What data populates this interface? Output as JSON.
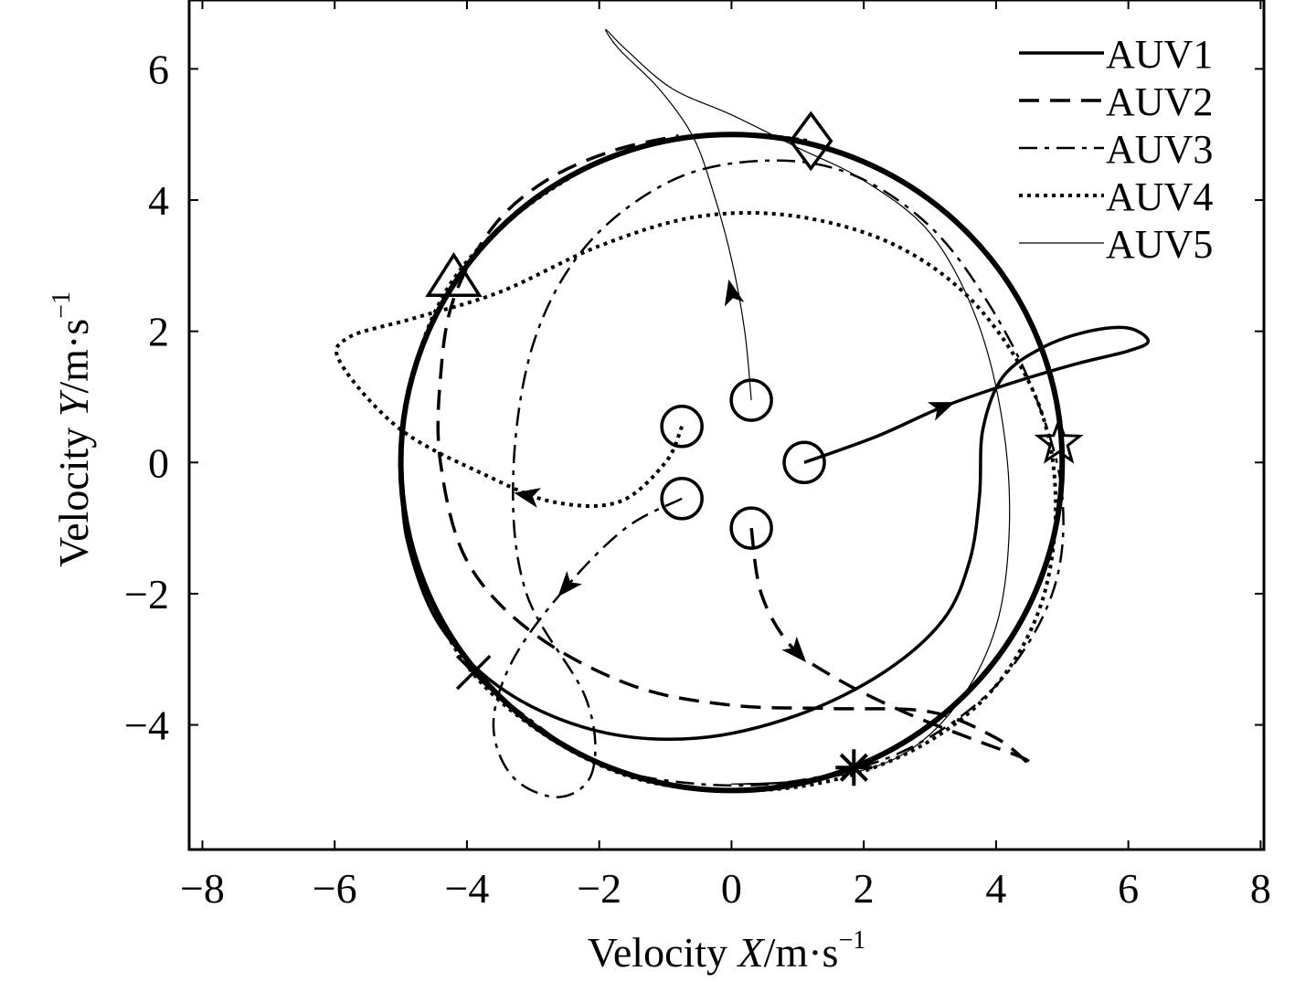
{
  "chart_data": {
    "type": "line",
    "title": "",
    "xlabel": {
      "prefix": "Velocity ",
      "var": "X",
      "unit": "/m·s",
      "exp": "−1"
    },
    "ylabel": {
      "prefix": "Velocity ",
      "var": "Y",
      "unit": "/m·s",
      "exp": "−1"
    },
    "xlim": [
      -8.2,
      8.05
    ],
    "ylim": [
      -5.9,
      7.05
    ],
    "xticks": [
      {
        "v": -8,
        "label": "−8"
      },
      {
        "v": -6,
        "label": "−6"
      },
      {
        "v": -4,
        "label": "−4"
      },
      {
        "v": -2,
        "label": "−2"
      },
      {
        "v": 0,
        "label": "0"
      },
      {
        "v": 2,
        "label": "2"
      },
      {
        "v": 4,
        "label": "4"
      },
      {
        "v": 6,
        "label": "6"
      },
      {
        "v": 8,
        "label": "8"
      }
    ],
    "yticks": [
      {
        "v": -4,
        "label": "−4"
      },
      {
        "v": -2,
        "label": "−2"
      },
      {
        "v": 0,
        "label": "0"
      },
      {
        "v": 2,
        "label": "2"
      },
      {
        "v": 4,
        "label": "4"
      },
      {
        "v": 6,
        "label": "6"
      }
    ],
    "grid": false,
    "legend_position": "top-right",
    "reference_circle": {
      "center": [
        0,
        0
      ],
      "radius": 5
    },
    "series": [
      {
        "name": "AUV1",
        "style": "solid",
        "width": 3.5,
        "start_marker": "circle",
        "end_marker": "star",
        "points": [
          [
            1.1,
            0
          ],
          [
            2.2,
            0.4
          ],
          [
            3.2,
            0.85
          ],
          [
            4.2,
            1.2
          ],
          [
            5.2,
            1.5
          ],
          [
            6.0,
            1.7
          ],
          [
            6.3,
            1.85
          ],
          [
            6.0,
            2.05
          ],
          [
            5.4,
            2.0
          ],
          [
            4.7,
            1.75
          ],
          [
            4.1,
            1.3
          ],
          [
            3.8,
            0.5
          ],
          [
            3.75,
            -0.5
          ],
          [
            3.6,
            -1.5
          ],
          [
            3.2,
            -2.4
          ],
          [
            2.3,
            -3.2
          ],
          [
            1.0,
            -3.85
          ],
          [
            -0.5,
            -4.2
          ],
          [
            -2.0,
            -4.1
          ],
          [
            -3.4,
            -3.5
          ],
          [
            -4.4,
            -2.5
          ],
          [
            -4.9,
            -1.2
          ],
          [
            -5.0,
            0
          ]
        ],
        "arrows": [
          [
            3.2,
            0.85
          ]
        ]
      },
      {
        "name": "AUV2",
        "style": "dash",
        "width": 3.5,
        "start_marker": "circle",
        "end_marker": "triangle",
        "points": [
          [
            0.3,
            -1.0
          ],
          [
            0.45,
            -2.0
          ],
          [
            0.9,
            -2.8
          ],
          [
            1.6,
            -3.3
          ],
          [
            2.6,
            -3.8
          ],
          [
            3.6,
            -4.2
          ],
          [
            4.4,
            -4.5
          ],
          [
            4.5,
            -4.6
          ],
          [
            4.0,
            -4.2
          ],
          [
            3.0,
            -3.8
          ],
          [
            1.5,
            -3.75
          ],
          [
            0.0,
            -3.7
          ],
          [
            -1.5,
            -3.4
          ],
          [
            -3.0,
            -2.6
          ],
          [
            -4.0,
            -1.5
          ],
          [
            -4.4,
            0
          ],
          [
            -4.4,
            1.3
          ],
          [
            -4.2,
            2.5
          ],
          [
            -3.6,
            3.6
          ],
          [
            -2.8,
            4.3
          ],
          [
            -1.8,
            4.75
          ],
          [
            -0.8,
            4.98
          ]
        ],
        "arrows": [
          [
            1.0,
            -2.9
          ]
        ]
      },
      {
        "name": "AUV3",
        "style": "dashdot",
        "width": 2.5,
        "start_marker": "circle",
        "end_marker": "cross",
        "points": [
          [
            -0.75,
            -0.55
          ],
          [
            -1.6,
            -1.0
          ],
          [
            -2.5,
            -1.9
          ],
          [
            -3.3,
            -3.0
          ],
          [
            -3.6,
            -4.0
          ],
          [
            -3.3,
            -4.8
          ],
          [
            -2.6,
            -5.1
          ],
          [
            -2.1,
            -4.7
          ],
          [
            -2.2,
            -3.6
          ],
          [
            -3.1,
            -2.0
          ],
          [
            -3.3,
            -0.2
          ],
          [
            -3.0,
            1.8
          ],
          [
            -2.2,
            3.3
          ],
          [
            -0.9,
            4.3
          ],
          [
            0.5,
            4.6
          ],
          [
            1.8,
            4.4
          ],
          [
            3.0,
            3.6
          ],
          [
            3.9,
            2.4
          ],
          [
            4.6,
            1.0
          ],
          [
            5.0,
            -0.5
          ],
          [
            4.85,
            -2.0
          ],
          [
            4.0,
            -3.4
          ],
          [
            2.6,
            -4.4
          ],
          [
            1.0,
            -4.85
          ],
          [
            -0.5,
            -4.9
          ],
          [
            -2.0,
            -4.6
          ],
          [
            -3.2,
            -3.8
          ],
          [
            -3.9,
            -3.2
          ]
        ],
        "arrows": [
          [
            -2.5,
            -1.9
          ]
        ]
      },
      {
        "name": "AUV4",
        "style": "dot",
        "width": 4,
        "start_marker": "circle",
        "end_marker": "diamond",
        "points": [
          [
            -0.75,
            0.55
          ],
          [
            -1.0,
            0.0
          ],
          [
            -1.7,
            -0.6
          ],
          [
            -2.7,
            -0.6
          ],
          [
            -3.7,
            -0.2
          ],
          [
            -5.0,
            0.5
          ],
          [
            -5.9,
            1.5
          ],
          [
            -5.8,
            1.9
          ],
          [
            -4.8,
            2.2
          ],
          [
            -3.5,
            2.6
          ],
          [
            -2.0,
            3.3
          ],
          [
            -0.5,
            3.75
          ],
          [
            1.0,
            3.75
          ],
          [
            2.5,
            3.3
          ],
          [
            3.7,
            2.4
          ],
          [
            4.6,
            1.0
          ],
          [
            4.9,
            -0.5
          ],
          [
            4.7,
            -2.1
          ],
          [
            4.0,
            -3.4
          ],
          [
            2.9,
            -4.3
          ],
          [
            1.5,
            -4.85
          ],
          [
            0.0,
            -5.0
          ],
          [
            -1.5,
            -4.8
          ],
          [
            -2.9,
            -4.1
          ],
          [
            -4.0,
            -3.1
          ],
          [
            -4.7,
            -1.7
          ],
          [
            -5.0,
            -0.2
          ],
          [
            -4.8,
            1.4
          ],
          [
            -4.2,
            2.8
          ],
          [
            -3.1,
            3.9
          ],
          [
            -1.6,
            4.75
          ],
          [
            0.0,
            5.0
          ],
          [
            1.2,
            4.9
          ]
        ],
        "arrows": [
          [
            -3.1,
            -0.5
          ]
        ]
      },
      {
        "name": "AUV5",
        "style": "solid",
        "width": 1.2,
        "start_marker": "circle",
        "end_marker": "asterisk",
        "points": [
          [
            0.3,
            0.95
          ],
          [
            0.2,
            2.0
          ],
          [
            0.0,
            3.1
          ],
          [
            -0.3,
            4.2
          ],
          [
            -0.6,
            5.0
          ],
          [
            -1.1,
            5.7
          ],
          [
            -1.7,
            6.3
          ],
          [
            -1.9,
            6.6
          ],
          [
            -1.6,
            6.3
          ],
          [
            -0.9,
            5.7
          ],
          [
            0.0,
            5.3
          ],
          [
            1.0,
            4.8
          ],
          [
            2.0,
            4.3
          ],
          [
            3.0,
            3.5
          ],
          [
            3.7,
            2.2
          ],
          [
            4.1,
            0.6
          ],
          [
            4.2,
            -1.0
          ],
          [
            4.0,
            -2.5
          ],
          [
            3.4,
            -3.7
          ],
          [
            2.5,
            -4.5
          ],
          [
            1.2,
            -4.85
          ],
          [
            0.0,
            -4.9
          ],
          [
            1.0,
            -4.85
          ],
          [
            1.85,
            -4.65
          ]
        ],
        "arrows": [
          [
            0.0,
            2.6
          ]
        ]
      }
    ],
    "end_markers_position": {
      "star": [
        4.95,
        0.3
      ],
      "triangle": [
        -4.2,
        2.8
      ],
      "cross": [
        -3.9,
        -3.2
      ],
      "diamond": [
        1.2,
        4.9
      ],
      "asterisk": [
        1.85,
        -4.65
      ]
    }
  }
}
